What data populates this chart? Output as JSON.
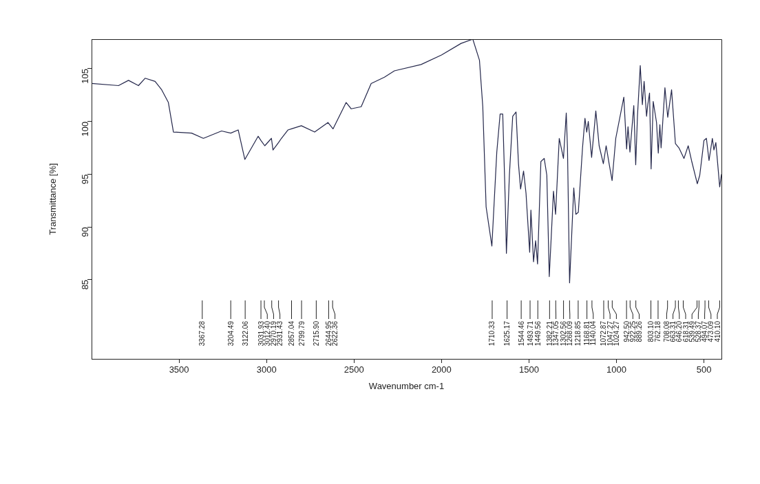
{
  "chart_data": {
    "type": "line",
    "xlabel": "Wavenumber cm-1",
    "ylabel": "Transmittance [%]",
    "xlim": [
      4000,
      400
    ],
    "xticks": [
      3500,
      3000,
      2500,
      2000,
      1500,
      1000,
      500
    ],
    "ylim": [
      77.5,
      107.8
    ],
    "yticks": [
      85,
      90,
      95,
      100,
      105
    ],
    "grid": false,
    "legend": false,
    "marker": "none",
    "line_style": "solid",
    "series": [
      {
        "color": "#23264a",
        "x": [
          4000,
          3846,
          3789,
          3732,
          3694,
          3637,
          3599,
          3561,
          3532,
          3428,
          3361,
          3257,
          3204.49,
          3162,
          3124,
          3048,
          3031.93,
          3010,
          2972,
          2963,
          2931.43,
          2915,
          2877,
          2857.04,
          2801,
          2725,
          2649,
          2620,
          2545,
          2516,
          2459,
          2402,
          2326,
          2269,
          2117,
          2000,
          1888,
          1821,
          1783,
          1764,
          1745,
          1712,
          1684,
          1665,
          1650,
          1636,
          1629,
          1612,
          1593,
          1574,
          1560,
          1548,
          1531,
          1517,
          1496,
          1489,
          1474,
          1462,
          1451,
          1432,
          1413,
          1398,
          1384,
          1360,
          1348,
          1327,
          1303,
          1287,
          1280,
          1268,
          1244,
          1232,
          1218,
          1194,
          1180,
          1170,
          1161,
          1142,
          1118,
          1099,
          1075,
          1059,
          1042,
          1025,
          1004,
          958,
          942,
          934,
          923,
          901,
          890,
          880,
          864,
          852,
          842,
          828,
          821,
          811,
          802,
          790,
          771,
          761,
          752,
          745,
          723,
          707,
          685,
          663,
          643,
          614,
          590,
          571,
          538,
          524,
          500,
          486,
          471,
          452,
          443,
          432,
          410,
          400
        ],
        "values": [
          103.6,
          103.4,
          103.9,
          103.4,
          104.1,
          103.8,
          103.0,
          101.8,
          99.0,
          98.9,
          98.4,
          99.1,
          98.9,
          99.2,
          96.4,
          98.6,
          98.2,
          97.7,
          98.4,
          97.3,
          98.0,
          98.4,
          99.2,
          99.3,
          99.6,
          99.0,
          99.9,
          99.3,
          101.8,
          101.2,
          101.4,
          103.6,
          104.2,
          104.8,
          105.4,
          106.3,
          107.4,
          107.8,
          105.8,
          101.4,
          91.9,
          88.2,
          97.1,
          100.7,
          100.7,
          92.7,
          87.5,
          94.9,
          100.5,
          100.9,
          96.0,
          93.6,
          95.3,
          93.2,
          87.6,
          91.6,
          86.7,
          88.7,
          86.5,
          96.2,
          96.5,
          94.9,
          85.3,
          93.4,
          91.2,
          98.4,
          96.5,
          100.8,
          97.5,
          84.7,
          93.7,
          91.2,
          91.4,
          97.5,
          100.3,
          99.0,
          100.0,
          96.6,
          101.0,
          97.7,
          96.0,
          97.7,
          96.0,
          94.4,
          98.4,
          102.3,
          97.4,
          99.5,
          97.1,
          101.5,
          95.9,
          100.5,
          105.3,
          101.6,
          103.8,
          100.5,
          101.6,
          102.7,
          95.5,
          101.9,
          99.9,
          97.0,
          99.7,
          97.5,
          103.2,
          100.4,
          103.0,
          97.9,
          97.5,
          96.5,
          97.7,
          96.3,
          94.1,
          94.9,
          98.2,
          98.4,
          96.3,
          98.4,
          97.3,
          98.0,
          93.8,
          95.0
        ]
      }
    ],
    "annotations": [
      {
        "text": "3367.28",
        "x": 3367.28
      },
      {
        "text": "3204.49",
        "x": 3204.49
      },
      {
        "text": "3122.06",
        "x": 3122.06
      },
      {
        "text": "3031.93",
        "x": 3031.93
      },
      {
        "text": "3012.40",
        "x": 3012.4
      },
      {
        "text": "2970.19",
        "x": 2970.19
      },
      {
        "text": "2931.43",
        "x": 2931.43
      },
      {
        "text": "2857.04",
        "x": 2857.04
      },
      {
        "text": "2799.79",
        "x": 2799.79
      },
      {
        "text": "2715.90",
        "x": 2715.9
      },
      {
        "text": "2644.95",
        "x": 2644.95
      },
      {
        "text": "2622.36",
        "x": 2622.36
      },
      {
        "text": "1710.33",
        "x": 1710.33
      },
      {
        "text": "1625.17",
        "x": 1625.17
      },
      {
        "text": "1544.46",
        "x": 1544.46
      },
      {
        "text": "1493.71",
        "x": 1493.71
      },
      {
        "text": "1449.56",
        "x": 1449.56
      },
      {
        "text": "1382.21",
        "x": 1382.21
      },
      {
        "text": "1347.05",
        "x": 1347.05
      },
      {
        "text": "1302.56",
        "x": 1302.56
      },
      {
        "text": "1268.09",
        "x": 1268.09
      },
      {
        "text": "1218.85",
        "x": 1218.85
      },
      {
        "text": "1168.81",
        "x": 1168.81
      },
      {
        "text": "1140.04",
        "x": 1140.04
      },
      {
        "text": "1072.87",
        "x": 1072.87
      },
      {
        "text": "1047.27",
        "x": 1047.27
      },
      {
        "text": "1024.27",
        "x": 1024.27
      },
      {
        "text": "942.50",
        "x": 942.5
      },
      {
        "text": "922.25",
        "x": 922.25
      },
      {
        "text": "889.26",
        "x": 889.26
      },
      {
        "text": "803.10",
        "x": 803.1
      },
      {
        "text": "762.18",
        "x": 762.18
      },
      {
        "text": "708.08",
        "x": 708.08
      },
      {
        "text": "663.31",
        "x": 663.31
      },
      {
        "text": "646.20",
        "x": 646.2
      },
      {
        "text": "618.31",
        "x": 618.31
      },
      {
        "text": "539.49",
        "x": 539.49
      },
      {
        "text": "528.37",
        "x": 528.37
      },
      {
        "text": "494.07",
        "x": 494.07
      },
      {
        "text": "473.09",
        "x": 473.09
      },
      {
        "text": "410.10",
        "x": 410.1
      }
    ]
  }
}
